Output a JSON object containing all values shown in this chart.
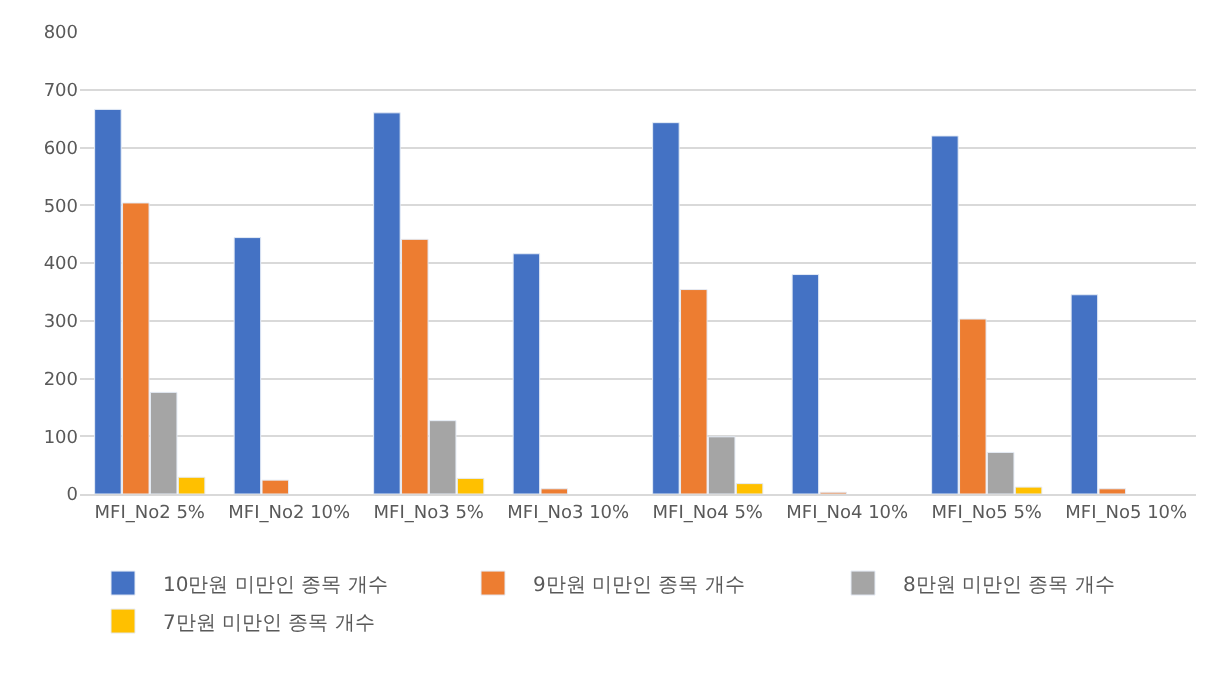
{
  "chart_data": {
    "type": "bar",
    "categories": [
      "MFI_No2 5%",
      "MFI_No2 10%",
      "MFI_No3 5%",
      "MFI_No3 10%",
      "MFI_No4 5%",
      "MFI_No4 10%",
      "MFI_No5 5%",
      "MFI_No5 10%"
    ],
    "series": [
      {
        "name": "10만원 미만인 종목 개수",
        "color": "#4472c4",
        "values": [
          666,
          444,
          660,
          416,
          643,
          380,
          620,
          345
        ]
      },
      {
        "name": "9만원 미만인 종목 개수",
        "color": "#ed7d31",
        "values": [
          504,
          24,
          441,
          9,
          354,
          3,
          303,
          9
        ]
      },
      {
        "name": "8만원 미만인 종목 개수",
        "color": "#a5a5a5",
        "values": [
          176,
          null,
          127,
          null,
          99,
          null,
          72,
          null
        ]
      },
      {
        "name": "7만원 미만인 종목 개수",
        "color": "#ffc000",
        "values": [
          29,
          null,
          27,
          null,
          18,
          null,
          12,
          null
        ]
      }
    ],
    "ylim": [
      0,
      800
    ],
    "yticks": [
      0,
      100,
      200,
      300,
      400,
      500,
      600,
      700,
      800
    ],
    "grid": "y",
    "legend": "bottom"
  }
}
